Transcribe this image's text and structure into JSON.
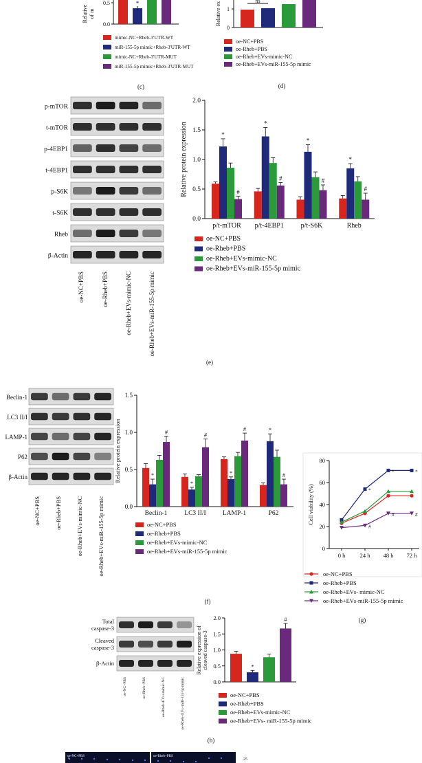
{
  "colors": {
    "red": "#d7261e",
    "navy": "#1f2a7a",
    "green": "#2a9a3a",
    "purple": "#6a2a7c"
  },
  "panel_c": {
    "caption": "(c)",
    "ylabel_lines": [
      "Relative",
      "of m"
    ],
    "yticks": [
      "0.5",
      "0.0"
    ],
    "legend": [
      "mimic-NC+Rheb-3'UTR-WT",
      "miR-155-5p mimic+Rheb-3'UTR-WT",
      "mimic-NC+Rheb-3'UTR-MUT",
      "miR-155-5p mimic+Rheb-3'UTR-MUT"
    ]
  },
  "panel_d": {
    "caption": "(d)",
    "ylabel": "Relative ex",
    "yticks": [
      "1",
      "0"
    ],
    "ns_label": "ns",
    "legend": [
      "oe-NC+PBS",
      "oe-Rheb+PBS",
      "oe-Rheb+EVs-mimic-NC",
      "oe-Rheb+EVs-miR-155-5p mimic"
    ]
  },
  "panel_e": {
    "caption": "(e)",
    "blot_labels": [
      "p-mTOR",
      "t-mTOR",
      "p-4EBP1",
      "t-4EBP1",
      "p-S6K",
      "t-S6K",
      "Rheb",
      "β-Actin"
    ],
    "lane_labels": [
      "oe-NC+PBS",
      "oe-Rheb+PBS",
      "oe-Rheb+EVs-mimic-NC",
      "oe-Rheb+EVs-miR-155-5p mimic"
    ],
    "legend": [
      "oe-NC+PBS",
      "oe-Rheb+PBS",
      "oe-Rheb+EVs-mimic-NC",
      "oe-Rheb+EVs-miR-155-5p mimic"
    ]
  },
  "panel_f": {
    "caption": "(f)",
    "blot_labels": [
      "Beclin-1",
      "LC3 II/I",
      "LAMP-1",
      "P62",
      "β-Actin"
    ],
    "lane_labels": [
      "oe-NC+PBS",
      "oe-Rheb+PBS",
      "oe-Rheb+EVs-mimic-NC",
      "oe-Rheb+EVs-miR-155-5p mimic"
    ],
    "legend": [
      "oe-NC+PBS",
      "oe-Rheb+PBS",
      "oe-Rheb+EVs-mimic-NC",
      "oe-Rheb+EVs-miR-155-5p mimic"
    ]
  },
  "panel_g": {
    "caption": "(g)",
    "legend": [
      "oe-NC+PBS",
      "oe-Rheb+PBS",
      "oe-Rheb+EVs- mimic-NC",
      "oe-Rheb+EVs-miR-155-5p mimic"
    ]
  },
  "panel_h": {
    "caption": "(h)",
    "blot_labels": [
      "Total caspase-3",
      "Cleaved caspase-3",
      "β-Actin"
    ],
    "lane_labels": [
      "oe-NC+PBS",
      "oe-Rheb+PBS",
      "oe-Rheb+EVs+mimic-NC",
      "oe-Rheb+EVs+miR-155-5p mimic"
    ],
    "legend": [
      "oe-NC+PBS",
      "oe-Rheb+PBS",
      "oe-Rheb+EVs-mimic-NC",
      "oe-Rheb+EVs- miR-155-5p mimic"
    ]
  },
  "bottom_strip": {
    "labels": [
      "oe-NC+PBS",
      "oe-Rheb+PBS"
    ]
  },
  "chart_data": [
    {
      "type": "bar",
      "id": "e",
      "ylabel": "Relative protein expression",
      "ylim": [
        0,
        2.0
      ],
      "yticks": [
        0.0,
        0.5,
        1.0,
        1.5,
        2.0
      ],
      "categories": [
        "p/t-mTOR",
        "p/t-4EBP1",
        "p/t-S6K",
        "Rheb"
      ],
      "series": [
        {
          "name": "oe-NC+PBS",
          "values": [
            0.59,
            0.46,
            0.32,
            0.34
          ],
          "errors": [
            0.03,
            0.05,
            0.05,
            0.05
          ]
        },
        {
          "name": "oe-Rheb+PBS",
          "values": [
            1.22,
            1.39,
            1.13,
            0.85
          ],
          "errors": [
            0.13,
            0.15,
            0.12,
            0.08
          ]
        },
        {
          "name": "oe-Rheb+EVs-mimic-NC",
          "values": [
            0.86,
            0.94,
            0.7,
            0.63
          ],
          "errors": [
            0.08,
            0.09,
            0.09,
            0.08
          ]
        },
        {
          "name": "oe-Rheb+EVs-miR-155-5p mimic",
          "values": [
            0.33,
            0.56,
            0.48,
            0.32
          ],
          "errors": [
            0.05,
            0.05,
            0.09,
            0.11
          ]
        }
      ],
      "annotations": [
        {
          "category": 0,
          "series": 1,
          "text": "*"
        },
        {
          "category": 0,
          "series": 3,
          "text": "#"
        },
        {
          "category": 1,
          "series": 1,
          "text": "*"
        },
        {
          "category": 1,
          "series": 3,
          "text": "#"
        },
        {
          "category": 2,
          "series": 1,
          "text": "*"
        },
        {
          "category": 2,
          "series": 3,
          "text": "#"
        },
        {
          "category": 3,
          "series": 1,
          "text": "*"
        },
        {
          "category": 3,
          "series": 3,
          "text": "#"
        }
      ]
    },
    {
      "type": "bar",
      "id": "f",
      "ylabel": "Relative protein expression",
      "ylim": [
        0,
        1.5
      ],
      "yticks": [
        0.0,
        0.5,
        1.0,
        1.5
      ],
      "categories": [
        "Beclin-1",
        "LC3 II/I",
        "LAMP-1",
        "P62"
      ],
      "series": [
        {
          "name": "oe-NC+PBS",
          "values": [
            0.52,
            0.4,
            0.64,
            0.29
          ],
          "errors": [
            0.06,
            0.04,
            0.03,
            0.03
          ]
        },
        {
          "name": "oe-Rheb+PBS",
          "values": [
            0.3,
            0.23,
            0.37,
            0.88
          ],
          "errors": [
            0.07,
            0.03,
            0.03,
            0.1
          ]
        },
        {
          "name": "oe-Rheb+EVs-mimic-NC",
          "values": [
            0.63,
            0.41,
            0.68,
            0.67
          ],
          "errors": [
            0.06,
            0.02,
            0.05,
            0.09
          ]
        },
        {
          "name": "oe-Rheb+EVs-miR-155-5p mimic",
          "values": [
            0.87,
            0.8,
            0.89,
            0.3
          ],
          "errors": [
            0.08,
            0.11,
            0.1,
            0.07
          ]
        }
      ],
      "annotations": [
        {
          "category": 0,
          "series": 1,
          "text": "*"
        },
        {
          "category": 0,
          "series": 3,
          "text": "#"
        },
        {
          "category": 1,
          "series": 1,
          "text": "*"
        },
        {
          "category": 1,
          "series": 3,
          "text": "#"
        },
        {
          "category": 2,
          "series": 1,
          "text": "*"
        },
        {
          "category": 2,
          "series": 3,
          "text": "#"
        },
        {
          "category": 3,
          "series": 1,
          "text": "*"
        },
        {
          "category": 3,
          "series": 3,
          "text": "#"
        }
      ]
    },
    {
      "type": "line",
      "id": "g",
      "ylabel": "Cell viability (%)",
      "ylim": [
        0,
        80
      ],
      "yticks": [
        0,
        20,
        40,
        60,
        80
      ],
      "x": [
        "0 h",
        "24 h",
        "48 h",
        "72 h"
      ],
      "series": [
        {
          "name": "oe-NC+PBS",
          "values": [
            23,
            32,
            48,
            48
          ],
          "marker": "circle"
        },
        {
          "name": "oe-Rheb+PBS",
          "values": [
            26,
            54,
            71,
            71
          ],
          "marker": "square"
        },
        {
          "name": "oe-Rheb+EVs- mimic-NC",
          "values": [
            24,
            34,
            52,
            52
          ],
          "marker": "triangle-up"
        },
        {
          "name": "oe-Rheb+EVs-miR-155-5p mimic",
          "values": [
            19,
            21,
            32,
            32
          ],
          "marker": "triangle-down"
        }
      ],
      "annotations": [
        {
          "x": 1,
          "series": 1,
          "text": "*"
        },
        {
          "x": 2,
          "series": 1,
          "text": "*"
        },
        {
          "x": 3,
          "series": 1,
          "text": "*"
        },
        {
          "x": 1,
          "series": 3,
          "text": "#"
        },
        {
          "x": 2,
          "series": 3,
          "text": "#"
        },
        {
          "x": 3,
          "series": 3,
          "text": "#"
        }
      ]
    },
    {
      "type": "bar",
      "id": "h",
      "ylabel": "Relative expression of cleaved caspase-3",
      "ylim": [
        0,
        2.0
      ],
      "yticks": [
        0.0,
        0.5,
        1.0,
        1.5,
        2.0
      ],
      "categories": [
        "oe-NC+PBS",
        "oe-Rheb+PBS",
        "oe-Rheb+EVs-mimic-NC",
        "oe-Rheb+EVs- miR-155-5p mimic"
      ],
      "values": [
        0.88,
        0.3,
        0.77,
        1.67
      ],
      "errors": [
        0.08,
        0.06,
        0.1,
        0.16
      ],
      "annotations": [
        {
          "index": 1,
          "text": "*"
        },
        {
          "index": 3,
          "text": "#"
        }
      ]
    }
  ]
}
